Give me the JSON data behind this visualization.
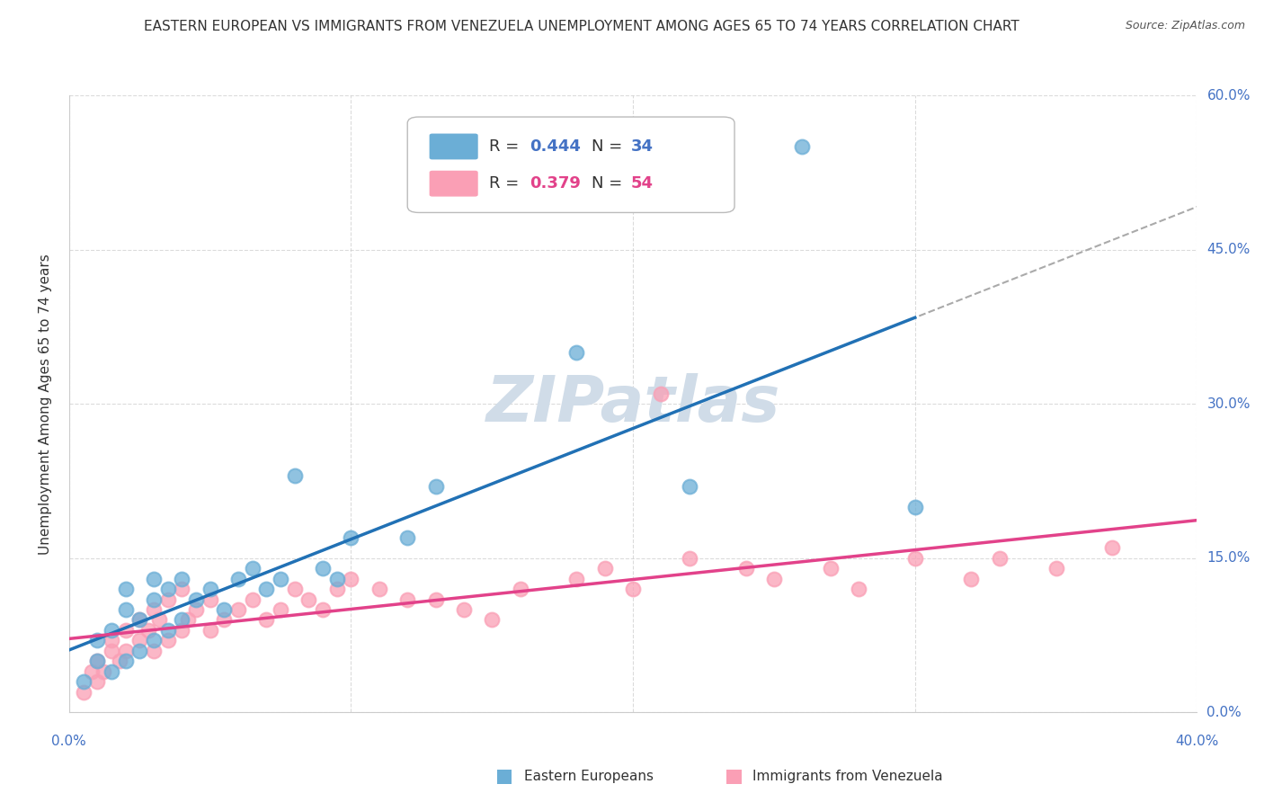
{
  "title": "EASTERN EUROPEAN VS IMMIGRANTS FROM VENEZUELA UNEMPLOYMENT AMONG AGES 65 TO 74 YEARS CORRELATION CHART",
  "source": "Source: ZipAtlas.com",
  "ylabel": "Unemployment Among Ages 65 to 74 years",
  "xlim": [
    0.0,
    0.4
  ],
  "ylim": [
    0.0,
    0.6
  ],
  "yticks": [
    0.0,
    0.15,
    0.3,
    0.45,
    0.6
  ],
  "ytick_labels": [
    "0.0%",
    "15.0%",
    "30.0%",
    "45.0%",
    "60.0%"
  ],
  "xtick_positions": [
    0.0,
    0.1,
    0.2,
    0.3,
    0.4
  ],
  "blue_R": 0.444,
  "blue_N": 34,
  "pink_R": 0.379,
  "pink_N": 54,
  "blue_color": "#6baed6",
  "blue_line_color": "#2171b5",
  "pink_color": "#fa9fb5",
  "pink_line_color": "#e2428a",
  "blue_scatter_x": [
    0.005,
    0.01,
    0.01,
    0.015,
    0.015,
    0.02,
    0.02,
    0.02,
    0.025,
    0.025,
    0.03,
    0.03,
    0.03,
    0.035,
    0.035,
    0.04,
    0.04,
    0.045,
    0.05,
    0.055,
    0.06,
    0.065,
    0.07,
    0.075,
    0.08,
    0.09,
    0.095,
    0.1,
    0.12,
    0.13,
    0.18,
    0.22,
    0.26,
    0.3
  ],
  "blue_scatter_y": [
    0.03,
    0.05,
    0.07,
    0.04,
    0.08,
    0.05,
    0.1,
    0.12,
    0.06,
    0.09,
    0.07,
    0.11,
    0.13,
    0.08,
    0.12,
    0.09,
    0.13,
    0.11,
    0.12,
    0.1,
    0.13,
    0.14,
    0.12,
    0.13,
    0.23,
    0.14,
    0.13,
    0.17,
    0.17,
    0.22,
    0.35,
    0.22,
    0.55,
    0.2
  ],
  "pink_scatter_x": [
    0.005,
    0.008,
    0.01,
    0.01,
    0.012,
    0.015,
    0.015,
    0.018,
    0.02,
    0.02,
    0.025,
    0.025,
    0.028,
    0.03,
    0.03,
    0.032,
    0.035,
    0.035,
    0.04,
    0.04,
    0.042,
    0.045,
    0.05,
    0.05,
    0.055,
    0.06,
    0.065,
    0.07,
    0.075,
    0.08,
    0.085,
    0.09,
    0.095,
    0.1,
    0.11,
    0.12,
    0.13,
    0.14,
    0.15,
    0.16,
    0.18,
    0.19,
    0.2,
    0.21,
    0.22,
    0.24,
    0.25,
    0.27,
    0.28,
    0.3,
    0.32,
    0.33,
    0.35,
    0.37
  ],
  "pink_scatter_y": [
    0.02,
    0.04,
    0.03,
    0.05,
    0.04,
    0.06,
    0.07,
    0.05,
    0.06,
    0.08,
    0.07,
    0.09,
    0.08,
    0.06,
    0.1,
    0.09,
    0.07,
    0.11,
    0.08,
    0.12,
    0.09,
    0.1,
    0.08,
    0.11,
    0.09,
    0.1,
    0.11,
    0.09,
    0.1,
    0.12,
    0.11,
    0.1,
    0.12,
    0.13,
    0.12,
    0.11,
    0.11,
    0.1,
    0.09,
    0.12,
    0.13,
    0.14,
    0.12,
    0.31,
    0.15,
    0.14,
    0.13,
    0.14,
    0.12,
    0.15,
    0.13,
    0.15,
    0.14,
    0.16
  ],
  "background_color": "#ffffff",
  "grid_color": "#cccccc",
  "watermark_text": "ZIPatlas",
  "watermark_color": "#d0dce8",
  "title_fontsize": 11,
  "axis_label_fontsize": 11,
  "tick_fontsize": 11,
  "legend_fontsize": 13,
  "bottom_legend_label1": "Eastern Europeans",
  "bottom_legend_label2": "Immigrants from Venezuela"
}
